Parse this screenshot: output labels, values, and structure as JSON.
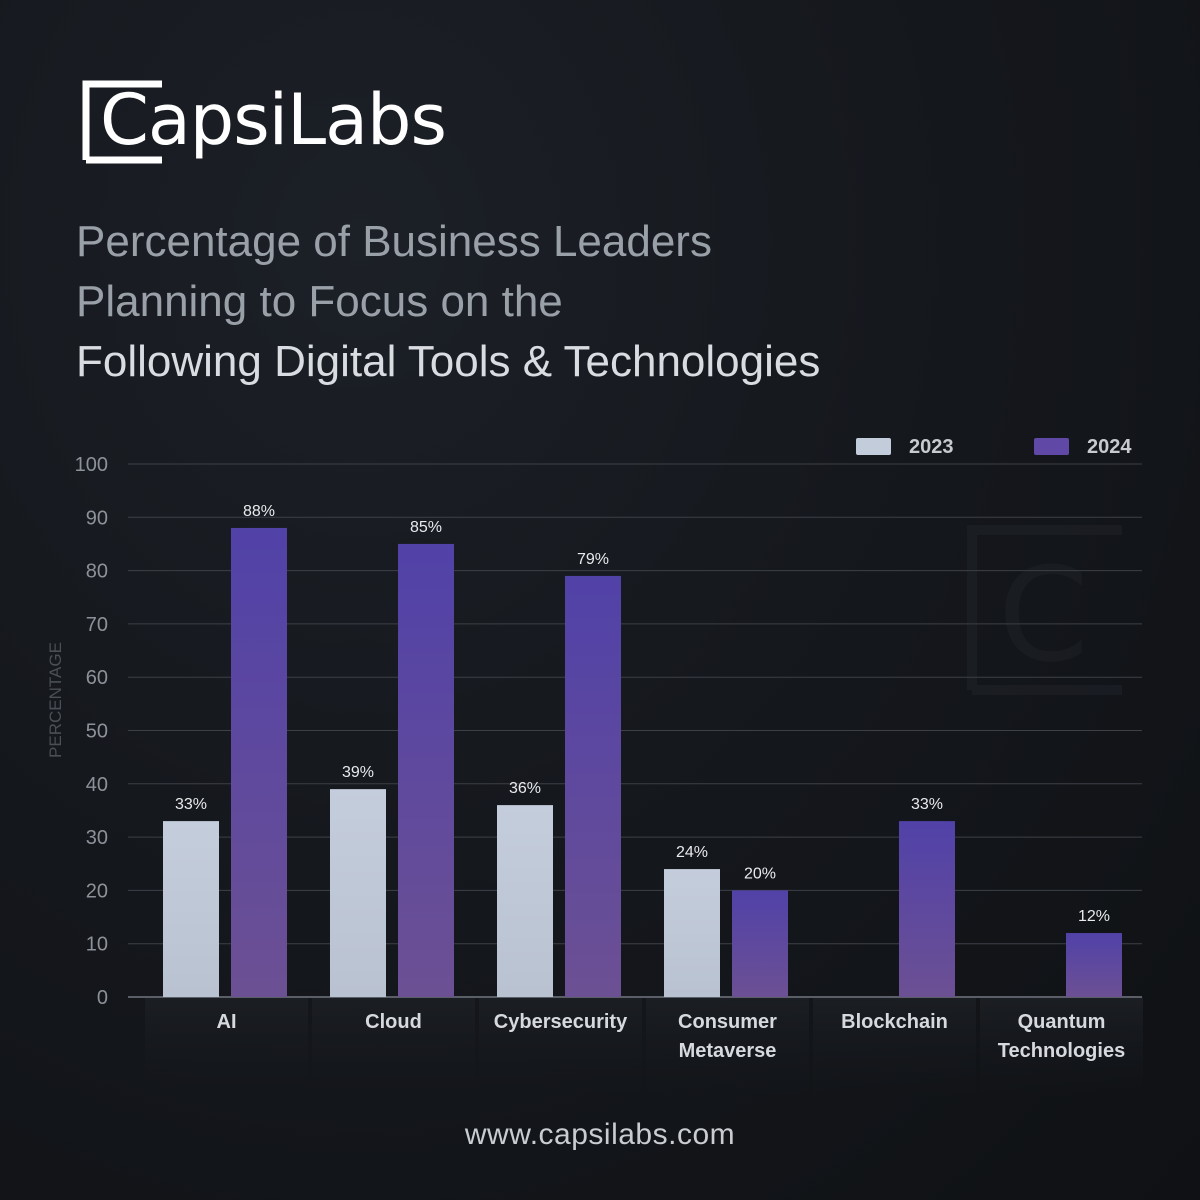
{
  "brand": {
    "logo_text": "CapsiLabs",
    "website": "www.capsilabs.com"
  },
  "title_lines": [
    "Percentage of Business Leaders",
    "Planning to Focus on the",
    "Following Digital Tools & Technologies"
  ],
  "colors": {
    "background": "#15181d",
    "series_2023": "#c3ccdb",
    "series_2024_top": "#5142a8",
    "series_2024_bottom": "#6c5094",
    "gridline": "#3c4047",
    "title_muted": "#9aa0a8",
    "title_bright": "#d9dde2"
  },
  "chart_data": {
    "type": "bar",
    "title": "Percentage of Business Leaders Planning to Focus on the Following Digital Tools & Technologies",
    "ylabel": "PERCENTAGE",
    "xlabel": "",
    "ylim": [
      0,
      100
    ],
    "yticks": [
      0,
      10,
      20,
      30,
      40,
      50,
      60,
      70,
      80,
      90,
      100
    ],
    "grid": true,
    "legend_position": "top-right",
    "categories": [
      "AI",
      "Cloud",
      "Cybersecurity",
      "Consumer Metaverse",
      "Blockchain",
      "Quantum Technologies"
    ],
    "category_label_lines": [
      [
        "AI"
      ],
      [
        "Cloud"
      ],
      [
        "Cybersecurity"
      ],
      [
        "Consumer",
        "Metaverse"
      ],
      [
        "Blockchain"
      ],
      [
        "Quantum",
        "Technologies"
      ]
    ],
    "series": [
      {
        "name": "2023",
        "values": [
          33,
          39,
          36,
          24,
          null,
          null
        ],
        "labels": [
          "33%",
          "39%",
          "36%",
          "24%",
          "",
          ""
        ]
      },
      {
        "name": "2024",
        "values": [
          88,
          85,
          79,
          20,
          33,
          12
        ],
        "labels": [
          "88%",
          "85%",
          "79%",
          "20%",
          "33%",
          "12%"
        ]
      }
    ]
  }
}
